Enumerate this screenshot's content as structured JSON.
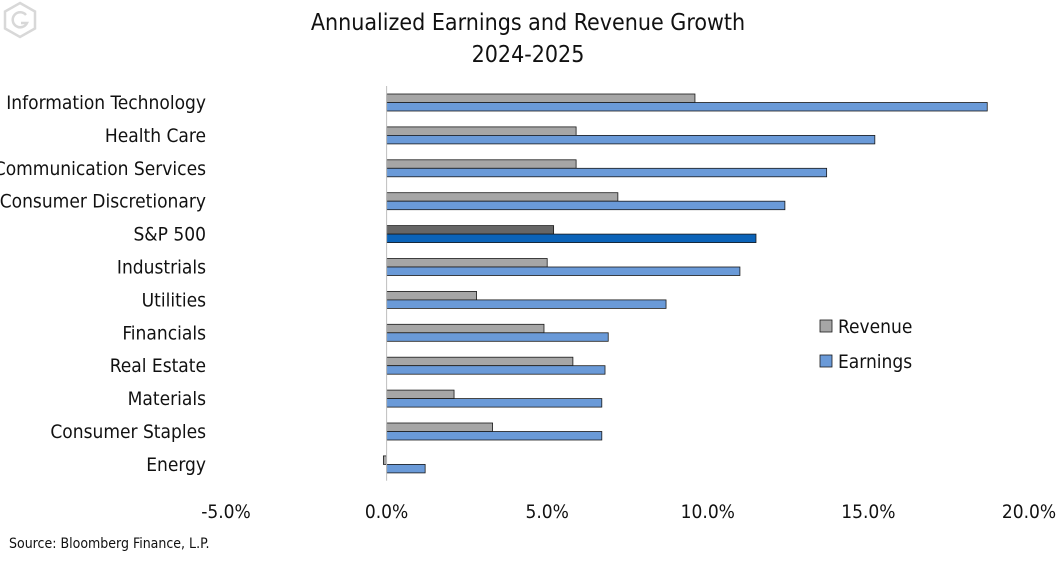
{
  "chart_data": {
    "type": "bar",
    "orientation": "horizontal",
    "title": "Annualized Earnings and Revenue Growth",
    "subtitle": "2024-2025",
    "categories": [
      "Information Technology",
      "Health Care",
      "Communication Services",
      "Consumer Discretionary",
      "S&P 500",
      "Industrials ",
      "Utilities",
      "Financials",
      "Real Estate",
      "Materials",
      "Consumer Staples",
      "Energy"
    ],
    "highlight_category": "S&P 500",
    "series": [
      {
        "name": "Revenue",
        "color": "#a6a6a6",
        "highlight_color": "#666666",
        "values": [
          9.6,
          5.9,
          5.9,
          7.2,
          5.2,
          5.0,
          2.8,
          4.9,
          5.8,
          2.1,
          3.3,
          -0.1
        ]
      },
      {
        "name": "Earnings",
        "color": "#6a9ad8",
        "highlight_color": "#0b63b8",
        "values": [
          18.7,
          15.2,
          13.7,
          12.4,
          11.5,
          11.0,
          8.7,
          6.9,
          6.8,
          6.7,
          6.7,
          1.2
        ]
      }
    ],
    "xlim": [
      -5,
      20
    ],
    "ticks": [
      "-5.0%",
      "0.0%",
      "5.0%",
      "10.0%",
      "15.0%",
      "20.0%"
    ],
    "tick_values": [
      -5,
      0,
      5,
      10,
      15,
      20
    ],
    "legend_position": "right",
    "grid": false
  },
  "source": "Source: Bloomberg Finance, L.P.",
  "logo": {
    "icon": "g-hexagon-logo-icon"
  }
}
